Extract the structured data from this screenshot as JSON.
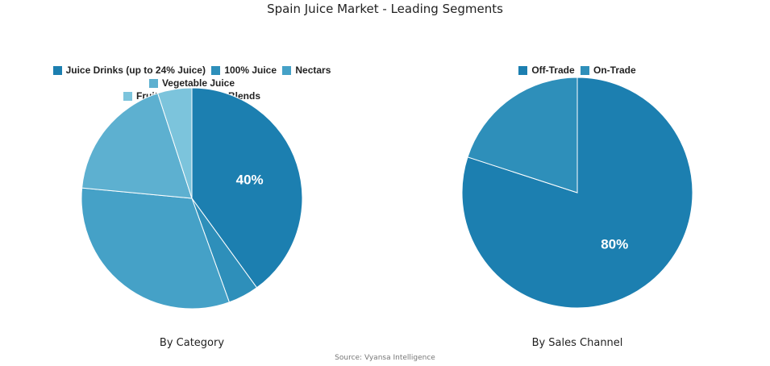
{
  "title": "Spain Juice Market - Leading Segments",
  "source": "Source: Vyansa Intelligence",
  "chart_data": [
    {
      "type": "pie",
      "subtitle": "By Category",
      "legend_position": "top",
      "categories": [
        "Juice Drinks (up to 24% Juice)",
        "100% Juice",
        "Nectars",
        "Vegetable Juice",
        "Fruit and Vegetable Blends"
      ],
      "values": [
        40,
        4.5,
        32,
        18.5,
        5
      ],
      "data_labels": [
        "40%",
        "",
        "",
        "",
        ""
      ],
      "colors": [
        "#1c7fb0",
        "#2e8fba",
        "#45a1c7",
        "#5db0d0",
        "#7cc4dc"
      ]
    },
    {
      "type": "pie",
      "subtitle": "By Sales Channel",
      "legend_position": "top",
      "categories": [
        "Off-Trade",
        "On-Trade"
      ],
      "values": [
        80,
        20
      ],
      "data_labels": [
        "80%",
        ""
      ],
      "colors": [
        "#1c7fb0",
        "#2e8fba"
      ]
    }
  ]
}
